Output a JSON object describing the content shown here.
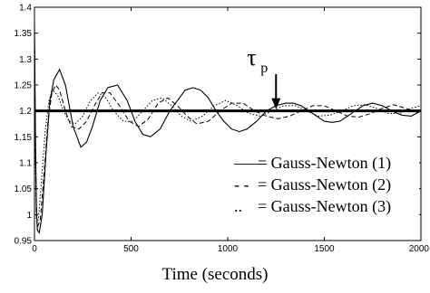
{
  "chart_data": {
    "type": "line",
    "xlabel": "Time (seconds)",
    "ylabel": "",
    "xlim": [
      0,
      2000
    ],
    "ylim": [
      0.95,
      1.4
    ],
    "x_ticks": [
      0,
      500,
      1000,
      1500,
      2000
    ],
    "x_tick_labels": [
      "0",
      "500",
      "1000",
      "1500",
      "2000"
    ],
    "y_ticks": [
      0.95,
      1.0,
      1.05,
      1.1,
      1.15,
      1.2,
      1.25,
      1.3,
      1.35,
      1.4
    ],
    "y_tick_labels": [
      "0.95",
      "1",
      "1.05",
      "1.1",
      "1.15",
      "1.2",
      "1.25",
      "1.3",
      "1.35",
      "1.4"
    ],
    "grid": false,
    "legend_position": "lower-right",
    "reference_line": {
      "y": 1.2
    },
    "annotation": {
      "symbol": "τ",
      "subscript": "p",
      "x": 1250,
      "points_to_y": 1.2
    },
    "series": [
      {
        "name": "= Gauss-Newton (1)",
        "legend_marker": "——",
        "style": "solid",
        "x": [
          0,
          5,
          10,
          15,
          25,
          40,
          60,
          80,
          100,
          130,
          160,
          200,
          240,
          270,
          300,
          340,
          380,
          430,
          480,
          520,
          560,
          600,
          650,
          700,
          740,
          780,
          820,
          860,
          900,
          940,
          980,
          1020,
          1060,
          1100,
          1150,
          1200,
          1250,
          1300,
          1340,
          1380,
          1420,
          1460,
          1500,
          1540,
          1580,
          1620,
          1660,
          1700,
          1750,
          1800,
          1850,
          1900,
          1950,
          2000
        ],
        "y": [
          1.37,
          1.15,
          1.02,
          0.97,
          0.965,
          1.0,
          1.12,
          1.22,
          1.26,
          1.28,
          1.25,
          1.17,
          1.13,
          1.14,
          1.17,
          1.22,
          1.245,
          1.25,
          1.22,
          1.18,
          1.155,
          1.15,
          1.165,
          1.2,
          1.22,
          1.24,
          1.245,
          1.24,
          1.225,
          1.2,
          1.18,
          1.165,
          1.16,
          1.165,
          1.18,
          1.2,
          1.21,
          1.215,
          1.215,
          1.21,
          1.2,
          1.19,
          1.18,
          1.178,
          1.18,
          1.19,
          1.2,
          1.21,
          1.215,
          1.21,
          1.2,
          1.192,
          1.19,
          1.2
        ]
      },
      {
        "name": "= Gauss-Newton (2)",
        "legend_marker": "- -",
        "style": "dashed",
        "x": [
          0,
          5,
          10,
          15,
          30,
          50,
          70,
          90,
          110,
          130,
          160,
          190,
          230,
          270,
          310,
          350,
          390,
          440,
          490,
          540,
          590,
          640,
          690,
          740,
          790,
          840,
          900,
          960,
          1020,
          1080,
          1140,
          1200,
          1260,
          1320,
          1380,
          1440,
          1500,
          1560,
          1620,
          1680,
          1740,
          1800,
          1860,
          1920,
          1980,
          2000
        ],
        "y": [
          1.35,
          1.12,
          1.0,
          0.975,
          0.99,
          1.08,
          1.18,
          1.235,
          1.25,
          1.24,
          1.2,
          1.17,
          1.165,
          1.18,
          1.21,
          1.235,
          1.235,
          1.21,
          1.18,
          1.17,
          1.185,
          1.215,
          1.225,
          1.21,
          1.19,
          1.175,
          1.18,
          1.2,
          1.215,
          1.215,
          1.2,
          1.19,
          1.185,
          1.19,
          1.2,
          1.21,
          1.21,
          1.2,
          1.19,
          1.188,
          1.195,
          1.205,
          1.212,
          1.205,
          1.198,
          1.2
        ]
      },
      {
        "name": "= Gauss-Newton (3)",
        "legend_marker": "..",
        "style": "dotted",
        "x": [
          0,
          5,
          10,
          20,
          35,
          55,
          75,
          95,
          120,
          150,
          180,
          210,
          250,
          290,
          330,
          370,
          410,
          460,
          510,
          560,
          610,
          660,
          710,
          760,
          810,
          870,
          930,
          990,
          1050,
          1110,
          1170,
          1230,
          1290,
          1350,
          1410,
          1470,
          1530,
          1590,
          1650,
          1710,
          1770,
          1830,
          1890,
          1950,
          2000
        ],
        "y": [
          1.33,
          1.1,
          0.99,
          0.99,
          1.06,
          1.16,
          1.22,
          1.24,
          1.23,
          1.2,
          1.18,
          1.175,
          1.19,
          1.22,
          1.235,
          1.225,
          1.2,
          1.18,
          1.18,
          1.2,
          1.22,
          1.225,
          1.21,
          1.19,
          1.18,
          1.19,
          1.21,
          1.22,
          1.21,
          1.195,
          1.19,
          1.2,
          1.21,
          1.21,
          1.2,
          1.19,
          1.192,
          1.2,
          1.21,
          1.212,
          1.205,
          1.195,
          1.195,
          1.205,
          1.21
        ]
      }
    ]
  }
}
